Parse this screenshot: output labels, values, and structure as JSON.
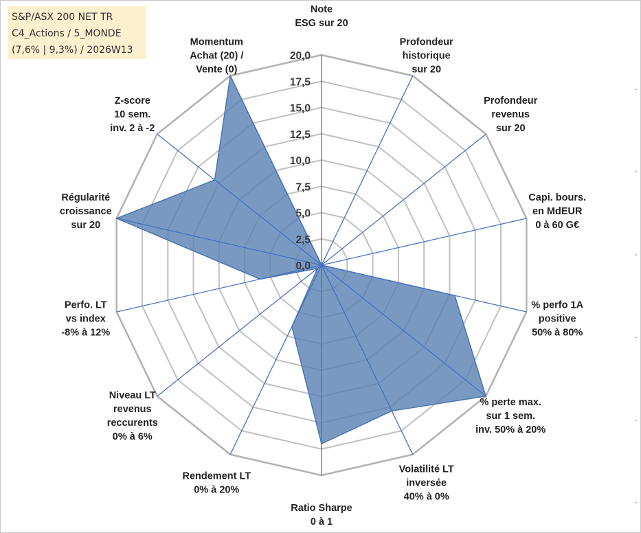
{
  "info_box": {
    "line1": "S&P/ASX 200 NET TR",
    "line2": "C4_Actions / 5_MONDE",
    "line3": "(7,6% | 9,3%) / 2026W13"
  },
  "chart_data": {
    "type": "radar",
    "title": "",
    "rlim": [
      0,
      20
    ],
    "tick_values": [
      0,
      2.5,
      5,
      7.5,
      10,
      12.5,
      15,
      17.5,
      20
    ],
    "tick_labels": [
      "0,0",
      "2,5",
      "5,0",
      "7,5",
      "10,0",
      "12,5",
      "15,0",
      "17,5",
      "20,0"
    ],
    "categories": [
      [
        "Note",
        "ESG sur 20"
      ],
      [
        "Profondeur",
        "historique",
        "sur 20"
      ],
      [
        "Profondeur",
        "revenus",
        "sur 20"
      ],
      [
        "Capi. bours.",
        "en MdEUR",
        "0 à 60 G€"
      ],
      [
        "% perfo 1A",
        "positive",
        "50% à 80%"
      ],
      [
        "% perte max.",
        "sur 1 sem.",
        "inv. 50% à 20%"
      ],
      [
        "Volatilité LT",
        "inversée",
        "40% à 0%"
      ],
      [
        "Ratio Sharpe",
        "0 à 1"
      ],
      [
        "Rendement LT",
        "0% à 20%"
      ],
      [
        "Niveau LT",
        "revenus",
        "reccurents",
        "0% à 6%"
      ],
      [
        "Perfo. LT",
        "vs index",
        "-8% à 12%"
      ],
      [
        "Régularité",
        "croissance",
        "sur 20"
      ],
      [
        "Z-score",
        "10 sem.",
        "inv. 2 à -2"
      ],
      [
        "Momentum",
        "Achat (20) /",
        "Vente (0)"
      ]
    ],
    "series": [
      {
        "name": "S&P/ASX 200 NET TR",
        "values": [
          0,
          0,
          0,
          0,
          13,
          20,
          15.4,
          17,
          6.5,
          0.5,
          6,
          20,
          13,
          20
        ],
        "color": "#5b83b5"
      }
    ],
    "grid_color": "#c2c2c2",
    "spoke_color": "#4472c4"
  }
}
